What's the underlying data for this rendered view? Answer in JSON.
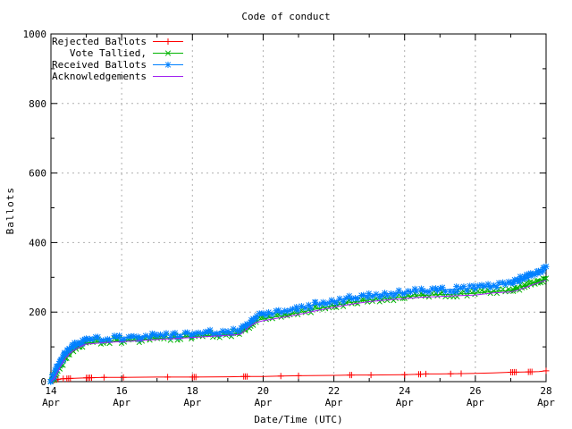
{
  "chart_data": {
    "type": "line",
    "title": "Code of conduct",
    "xlabel": "Date/Time (UTC)",
    "ylabel": "Ballots",
    "x_unit": "day of April (UTC)",
    "xlim": [
      14,
      28
    ],
    "ylim": [
      0,
      1000
    ],
    "grid": true,
    "legend_position": "top-left",
    "x_major_ticks": [
      14,
      16,
      18,
      20,
      22,
      24,
      26,
      28
    ],
    "x_minor_ticks": [
      15,
      17,
      19,
      21,
      23,
      25,
      27
    ],
    "x_tick_label_line2": "Apr",
    "y_major_ticks": [
      0,
      200,
      400,
      600,
      800,
      1000
    ],
    "y_minor_ticks": [
      100,
      300,
      500,
      700,
      900
    ],
    "colors": {
      "rejected": "#ff0000",
      "tallied": "#00b400",
      "received": "#0080ff",
      "acknowledgements": "#a020f0",
      "grid": "#b0b0b0",
      "border": "#000000",
      "background": "#ffffff"
    },
    "series": [
      {
        "name": "Rejected Ballots",
        "color": "#ff0000",
        "marker": "plus",
        "line": true,
        "points": [
          [
            14,
            0
          ],
          [
            14.05,
            3
          ],
          [
            14.15,
            6
          ],
          [
            14.3,
            8
          ],
          [
            14.5,
            9
          ],
          [
            14.75,
            10
          ],
          [
            15,
            11
          ],
          [
            15.5,
            12
          ],
          [
            16,
            12
          ],
          [
            17,
            13
          ],
          [
            18,
            13
          ],
          [
            19,
            14
          ],
          [
            19.5,
            15
          ],
          [
            20,
            15
          ],
          [
            20.5,
            16
          ],
          [
            21,
            17
          ],
          [
            22,
            18
          ],
          [
            22.5,
            19
          ],
          [
            23,
            19
          ],
          [
            24,
            20
          ],
          [
            24.4,
            21
          ],
          [
            24.6,
            22
          ],
          [
            25,
            22
          ],
          [
            25.5,
            23
          ],
          [
            26,
            24
          ],
          [
            26.5,
            25
          ],
          [
            27,
            27
          ],
          [
            27.5,
            28
          ],
          [
            27.8,
            29
          ],
          [
            28,
            31
          ]
        ],
        "marker_x": [
          14.05,
          14.1,
          14.15,
          14.2,
          14.35,
          14.45,
          14.5,
          14.55,
          15.0,
          15.05,
          15.1,
          15.15,
          15.5,
          16.05,
          17.3,
          18.0,
          18.05,
          18.1,
          19.45,
          19.5,
          19.55,
          20.5,
          21.0,
          22.45,
          22.5,
          23.05,
          24.0,
          24.4,
          24.45,
          24.6,
          25.3,
          25.6,
          27.0,
          27.05,
          27.1,
          27.15,
          27.5,
          27.55,
          27.6,
          28.0
        ]
      },
      {
        "name": "Vote Tallied,",
        "color": "#00b400",
        "marker": "cross",
        "line": true,
        "points": [
          [
            14,
            0
          ],
          [
            14.1,
            12
          ],
          [
            14.2,
            32
          ],
          [
            14.3,
            52
          ],
          [
            14.4,
            68
          ],
          [
            14.5,
            80
          ],
          [
            14.6,
            89
          ],
          [
            14.75,
            98
          ],
          [
            14.9,
            106
          ],
          [
            15,
            110
          ],
          [
            15.25,
            113
          ],
          [
            15.5,
            115
          ],
          [
            16,
            118
          ],
          [
            16.5,
            121
          ],
          [
            17,
            124
          ],
          [
            17.5,
            127
          ],
          [
            18,
            130
          ],
          [
            18.5,
            133
          ],
          [
            19,
            136
          ],
          [
            19.35,
            139
          ],
          [
            19.5,
            152
          ],
          [
            19.65,
            166
          ],
          [
            19.8,
            175
          ],
          [
            20,
            180
          ],
          [
            20.5,
            189
          ],
          [
            21,
            198
          ],
          [
            21.5,
            209
          ],
          [
            22,
            219
          ],
          [
            22.5,
            228
          ],
          [
            23,
            235
          ],
          [
            23.5,
            240
          ],
          [
            24,
            244
          ],
          [
            24.5,
            248
          ],
          [
            25,
            250
          ],
          [
            25.5,
            252
          ],
          [
            26,
            254
          ],
          [
            26.5,
            259
          ],
          [
            27,
            262
          ],
          [
            27.2,
            268
          ],
          [
            27.4,
            275
          ],
          [
            27.6,
            283
          ],
          [
            27.8,
            290
          ],
          [
            28,
            297
          ]
        ]
      },
      {
        "name": "Received Ballots",
        "color": "#0080ff",
        "marker": "star",
        "line": true,
        "points": [
          [
            14,
            0
          ],
          [
            14.1,
            20
          ],
          [
            14.2,
            45
          ],
          [
            14.3,
            65
          ],
          [
            14.4,
            80
          ],
          [
            14.5,
            92
          ],
          [
            14.6,
            100
          ],
          [
            14.75,
            108
          ],
          [
            14.9,
            115
          ],
          [
            15,
            118
          ],
          [
            15.25,
            121
          ],
          [
            15.5,
            123
          ],
          [
            16,
            126
          ],
          [
            16.5,
            129
          ],
          [
            17,
            132
          ],
          [
            17.5,
            135
          ],
          [
            18,
            138
          ],
          [
            18.5,
            141
          ],
          [
            19,
            144
          ],
          [
            19.35,
            147
          ],
          [
            19.5,
            162
          ],
          [
            19.65,
            177
          ],
          [
            19.8,
            186
          ],
          [
            20,
            191
          ],
          [
            20.5,
            201
          ],
          [
            21,
            210
          ],
          [
            21.5,
            222
          ],
          [
            22,
            232
          ],
          [
            22.5,
            241
          ],
          [
            23,
            248
          ],
          [
            23.5,
            253
          ],
          [
            24,
            257
          ],
          [
            24.5,
            261
          ],
          [
            25,
            264
          ],
          [
            25.5,
            266
          ],
          [
            26,
            269
          ],
          [
            26.5,
            275
          ],
          [
            27,
            284
          ],
          [
            27.2,
            291
          ],
          [
            27.4,
            299
          ],
          [
            27.6,
            308
          ],
          [
            27.8,
            318
          ],
          [
            28,
            331
          ]
        ]
      },
      {
        "name": "Acknowledgements",
        "color": "#a020f0",
        "marker": "none",
        "line": true,
        "points": [
          [
            14,
            0
          ],
          [
            14.1,
            10
          ],
          [
            14.2,
            30
          ],
          [
            14.3,
            50
          ],
          [
            14.4,
            66
          ],
          [
            14.5,
            78
          ],
          [
            14.6,
            87
          ],
          [
            14.75,
            96
          ],
          [
            14.9,
            104
          ],
          [
            15,
            108
          ],
          [
            15.25,
            110
          ],
          [
            15.5,
            112
          ],
          [
            16,
            115
          ],
          [
            16.5,
            118
          ],
          [
            17,
            121
          ],
          [
            17.5,
            124
          ],
          [
            18,
            127
          ],
          [
            18.5,
            130
          ],
          [
            19,
            133
          ],
          [
            19.35,
            136
          ],
          [
            19.5,
            148
          ],
          [
            19.65,
            161
          ],
          [
            19.8,
            170
          ],
          [
            20,
            175
          ],
          [
            20.5,
            184
          ],
          [
            21,
            193
          ],
          [
            21.5,
            204
          ],
          [
            22,
            214
          ],
          [
            22.5,
            223
          ],
          [
            23,
            230
          ],
          [
            23.5,
            235
          ],
          [
            24,
            239
          ],
          [
            24.5,
            243
          ],
          [
            25,
            245
          ],
          [
            25.5,
            247
          ],
          [
            26,
            249
          ],
          [
            26.5,
            255
          ],
          [
            27,
            258
          ],
          [
            27.2,
            263
          ],
          [
            27.4,
            270
          ],
          [
            27.6,
            278
          ],
          [
            27.8,
            285
          ],
          [
            28,
            292
          ]
        ]
      }
    ]
  }
}
